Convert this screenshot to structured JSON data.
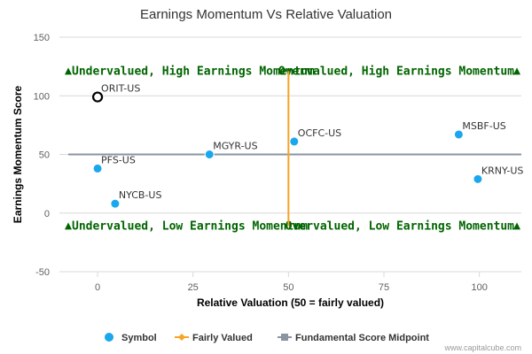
{
  "chart_data": {
    "type": "scatter",
    "title": "Earnings Momentum Vs Relative Valuation",
    "xlabel": "Relative Valuation (50 = fairly valued)",
    "ylabel": "Earnings Momentum Score",
    "xlim": [
      -10,
      111
    ],
    "ylim": [
      -50,
      150
    ],
    "xticks": [
      0,
      25,
      50,
      75,
      100
    ],
    "yticks": [
      -50,
      0,
      50,
      100,
      150
    ],
    "grid": "horizontal",
    "points": [
      {
        "label": "ORIT-US",
        "x": 0,
        "y": 99,
        "highlighted": true
      },
      {
        "label": "PFS-US",
        "x": 0,
        "y": 38
      },
      {
        "label": "NYCB-US",
        "x": 4.6,
        "y": 8
      },
      {
        "label": "MGYR-US",
        "x": 29.3,
        "y": 50
      },
      {
        "label": "OCFC-US",
        "x": 51.5,
        "y": 61
      },
      {
        "label": "MSBF-US",
        "x": 94.6,
        "y": 67
      },
      {
        "label": "KRNY-US",
        "x": 99.6,
        "y": 29
      }
    ],
    "fairly_valued_x": 50,
    "fairly_valued_yrange": [
      -11,
      121
    ],
    "midpoint_y": 50,
    "quadrants": {
      "top_left": "Undervalued, High Earnings Momentum",
      "top_right": "Overvalued, High Earnings Momentum",
      "bottom_left": "Undervalued, Low Earnings Momentum",
      "bottom_right": "Overvalued, Low Earnings Momentum"
    },
    "quadrant_marker_y": {
      "top": 121,
      "bottom": -11
    },
    "legend": {
      "position": "bottom-center",
      "items": [
        {
          "name": "Symbol",
          "symbol": "circle",
          "color": "#1aa7ee"
        },
        {
          "name": "Fairly Valued",
          "symbol": "diamond-line",
          "color": "#f7a325"
        },
        {
          "name": "Fundamental Score Midpoint",
          "symbol": "square-line",
          "color": "#8a95a0"
        }
      ]
    },
    "colors": {
      "symbol": "#1aa7ee",
      "fairly_valued": "#f7a325",
      "midpoint": "#8a95a0",
      "quadrant_text": "#006400",
      "grid": "#d8d8d8"
    }
  },
  "credit": "www.capitalcube.com"
}
